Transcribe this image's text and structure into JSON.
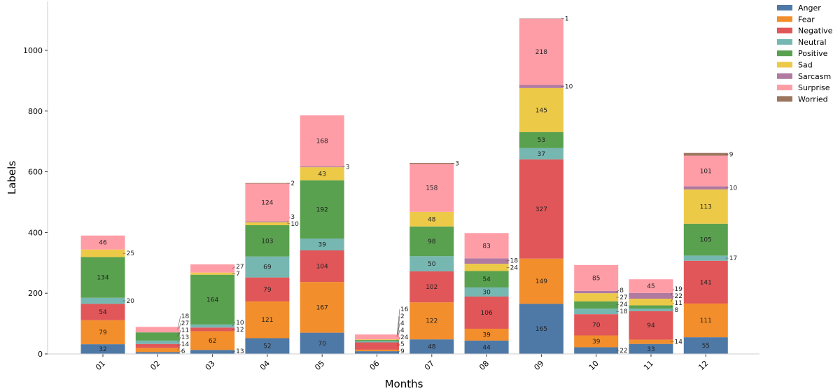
{
  "chart_data": {
    "type": "bar",
    "stacked": true,
    "xlabel": "Months",
    "ylabel": "Labels",
    "ylim": [
      0,
      1160
    ],
    "yticks": [
      0,
      200,
      400,
      600,
      800,
      1000
    ],
    "grid": false,
    "legend_position": "top-right",
    "categories": [
      "01",
      "02",
      "03",
      "04",
      "05",
      "06",
      "07",
      "08",
      "09",
      "10",
      "11",
      "12"
    ],
    "series": [
      {
        "name": "Anger",
        "color": "#4e79a7",
        "values": [
          32,
          6,
          13,
          52,
          70,
          9,
          48,
          44,
          165,
          22,
          33,
          55
        ]
      },
      {
        "name": "Fear",
        "color": "#f28e2b",
        "values": [
          79,
          14,
          62,
          121,
          167,
          5,
          122,
          39,
          149,
          39,
          14,
          111
        ]
      },
      {
        "name": "Negative",
        "color": "#e15759",
        "values": [
          54,
          13,
          12,
          79,
          104,
          24,
          102,
          106,
          327,
          70,
          94,
          141
        ]
      },
      {
        "name": "Neutral",
        "color": "#76b7b2",
        "values": [
          20,
          11,
          10,
          69,
          39,
          4,
          50,
          30,
          37,
          18,
          8,
          17
        ]
      },
      {
        "name": "Positive",
        "color": "#59a14f",
        "values": [
          134,
          27,
          164,
          103,
          192,
          4,
          98,
          54,
          53,
          24,
          11,
          105
        ]
      },
      {
        "name": "Sad",
        "color": "#edc948",
        "values": [
          25,
          0,
          7,
          10,
          43,
          2,
          48,
          24,
          145,
          27,
          22,
          113
        ]
      },
      {
        "name": "Sarcasm",
        "color": "#b07aa1",
        "values": [
          0,
          0,
          0,
          3,
          3,
          0,
          0,
          18,
          10,
          8,
          19,
          10
        ]
      },
      {
        "name": "Surprise",
        "color": "#ff9da7",
        "values": [
          46,
          18,
          27,
          124,
          168,
          16,
          158,
          83,
          218,
          85,
          45,
          101
        ]
      },
      {
        "name": "Worried",
        "color": "#9c755f",
        "values": [
          0,
          0,
          0,
          2,
          0,
          0,
          3,
          0,
          1,
          0,
          0,
          9
        ]
      }
    ]
  }
}
